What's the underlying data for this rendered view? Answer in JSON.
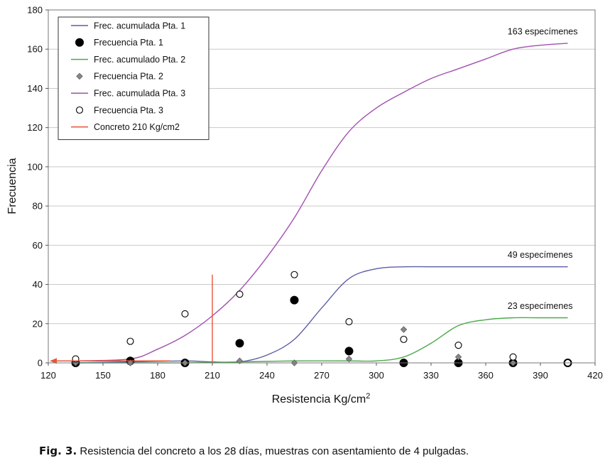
{
  "chart_data": {
    "type": "line",
    "xlabel": "Resistencia Kg/cm",
    "xlabel_sup": "2",
    "ylabel": "Frecuencia",
    "xlim": [
      120,
      420
    ],
    "ylim": [
      0,
      180
    ],
    "x_ticks": [
      120,
      150,
      180,
      210,
      240,
      270,
      300,
      330,
      360,
      390,
      420
    ],
    "y_ticks": [
      0,
      20,
      40,
      60,
      80,
      100,
      120,
      140,
      160,
      180
    ],
    "grid": "horizontal",
    "legend_position": "top-left",
    "series": [
      {
        "name": "Frec. acumulada Pta. 1",
        "kind": "line",
        "color": "#5b5ea6",
        "x": [
          135,
          165,
          195,
          210,
          225,
          240,
          255,
          270,
          285,
          300,
          315,
          330,
          345,
          360,
          375,
          405
        ],
        "y": [
          0,
          0.5,
          1,
          0.5,
          0.5,
          4,
          12,
          28,
          43,
          48,
          49,
          49,
          49,
          49,
          49,
          49
        ]
      },
      {
        "name": "Frecuencia Pta. 1",
        "kind": "scatter",
        "marker": "filled-circle",
        "color": "#000000",
        "x": [
          135,
          165,
          195,
          225,
          255,
          285,
          315,
          345,
          375,
          405
        ],
        "y": [
          0,
          1,
          0,
          10,
          32,
          6,
          0,
          0,
          0,
          0
        ]
      },
      {
        "name": "Frec. acumulado Pta. 2",
        "kind": "line",
        "color": "#4caa4c",
        "x": [
          135,
          165,
          195,
          225,
          255,
          285,
          300,
          315,
          330,
          345,
          360,
          375,
          390,
          405
        ],
        "y": [
          0,
          0,
          0,
          0.5,
          1,
          1,
          1,
          3,
          10,
          19,
          22,
          23,
          23,
          23
        ]
      },
      {
        "name": "Frecuencia Pta. 2",
        "kind": "scatter",
        "marker": "diamond",
        "color": "#888888",
        "x": [
          135,
          165,
          195,
          225,
          255,
          285,
          315,
          345,
          375,
          405
        ],
        "y": [
          0,
          0,
          0,
          1,
          0,
          2,
          17,
          3,
          0,
          0
        ]
      },
      {
        "name": "Frec. acumulada Pta. 3",
        "kind": "line",
        "color": "#a050b0",
        "x": [
          135,
          165,
          180,
          195,
          210,
          225,
          240,
          255,
          270,
          285,
          300,
          315,
          330,
          345,
          360,
          375,
          390,
          405
        ],
        "y": [
          1,
          2,
          7,
          14,
          24,
          37,
          54,
          74,
          98,
          118,
          130,
          138,
          145,
          150,
          155,
          160,
          162,
          163
        ]
      },
      {
        "name": "Frecuencia Pta. 3",
        "kind": "scatter",
        "marker": "open-circle",
        "color": "#000000",
        "x": [
          135,
          165,
          195,
          225,
          255,
          285,
          315,
          345,
          375,
          405
        ],
        "y": [
          2,
          11,
          25,
          35,
          45,
          21,
          12,
          9,
          3,
          0
        ]
      },
      {
        "name": "Concreto 210 Kg/cm2",
        "kind": "vline",
        "color": "#e8553a",
        "x": 210,
        "y_range": [
          0,
          45
        ]
      }
    ],
    "arrow": {
      "color": "#e8553a",
      "from": [
        187,
        1
      ],
      "to": [
        120,
        1
      ]
    },
    "annotations": [
      {
        "text": "163 especímenes",
        "x": 372,
        "y": 169,
        "anchor": "start"
      },
      {
        "text": "49 especímenes",
        "x": 372,
        "y": 55,
        "anchor": "start"
      },
      {
        "text": "23 especímenes",
        "x": 372,
        "y": 29,
        "anchor": "start"
      }
    ]
  },
  "caption": {
    "label": "Fig. 3.",
    "text": " Resistencia del concreto a los 28 días, muestras con asentamiento de 4 pulgadas."
  }
}
